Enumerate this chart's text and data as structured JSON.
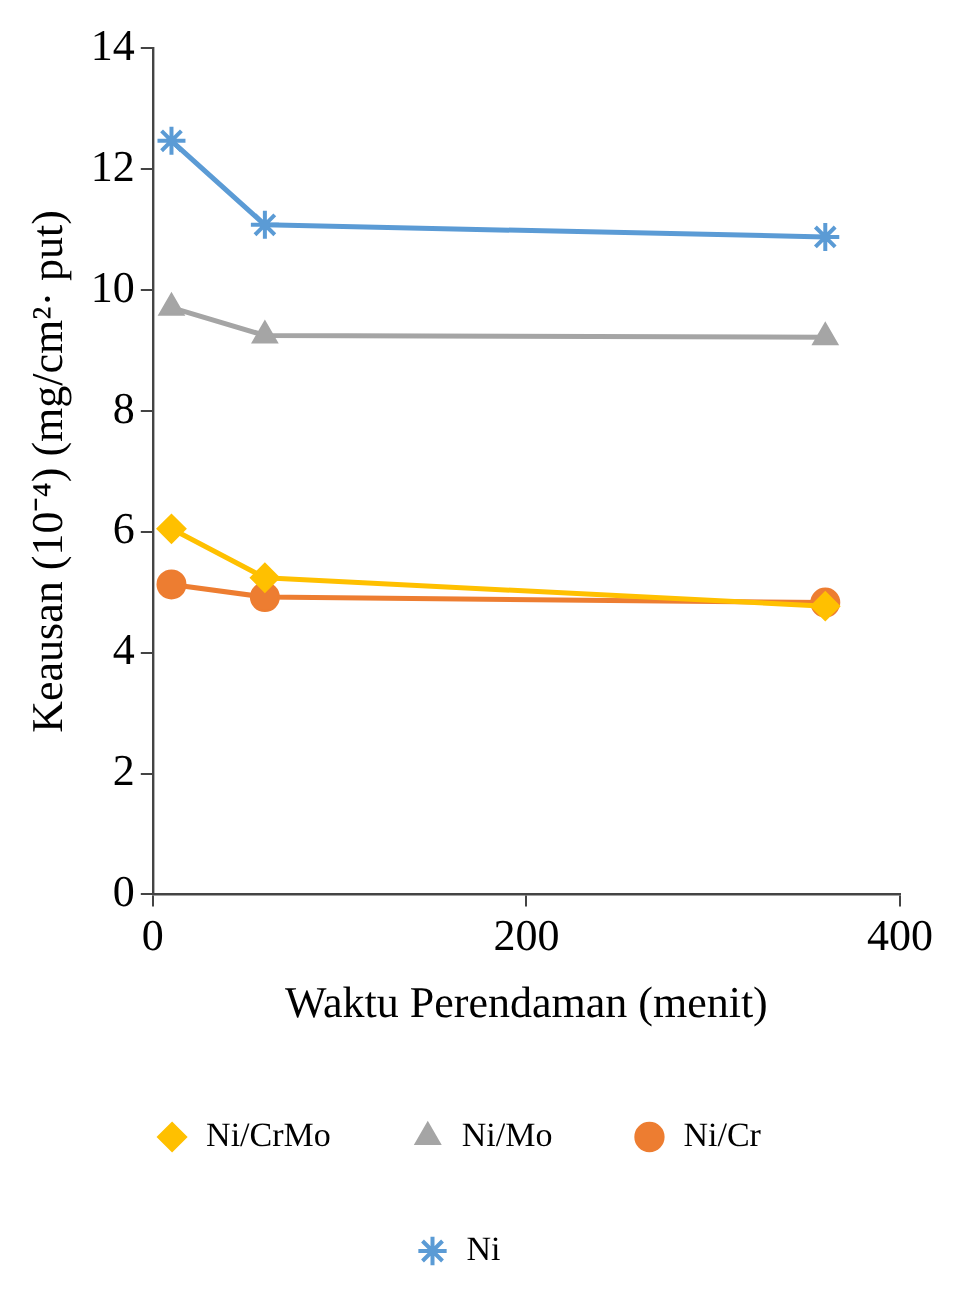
{
  "chart_data": {
    "type": "line",
    "xlabel": "Waktu Perendaman (menit)",
    "ylabel": "Keausan (10⁻⁴) (mg/cm²· put)",
    "x": [
      10,
      60,
      360
    ],
    "xlim": [
      0,
      400
    ],
    "xticks": [
      0,
      200,
      400
    ],
    "ylim": [
      0,
      14
    ],
    "yticks": [
      0,
      2,
      4,
      6,
      8,
      10,
      12,
      14
    ],
    "grid": false,
    "legend": "bottom",
    "series": [
      {
        "name": "Ni",
        "color": "#5b9bd5",
        "marker": "cross",
        "values": [
          12.47,
          11.08,
          10.88
        ]
      },
      {
        "name": "Ni/Cr",
        "color": "#ed7d31",
        "marker": "circle",
        "values": [
          5.13,
          4.92,
          4.83
        ]
      },
      {
        "name": "Ni/Mo",
        "color": "#a5a5a5",
        "marker": "triangle",
        "values": [
          9.71,
          9.25,
          9.22
        ]
      },
      {
        "name": "Ni/CrMo",
        "color": "#ffc000",
        "marker": "diamond",
        "values": [
          6.05,
          5.24,
          4.77
        ]
      }
    ]
  }
}
